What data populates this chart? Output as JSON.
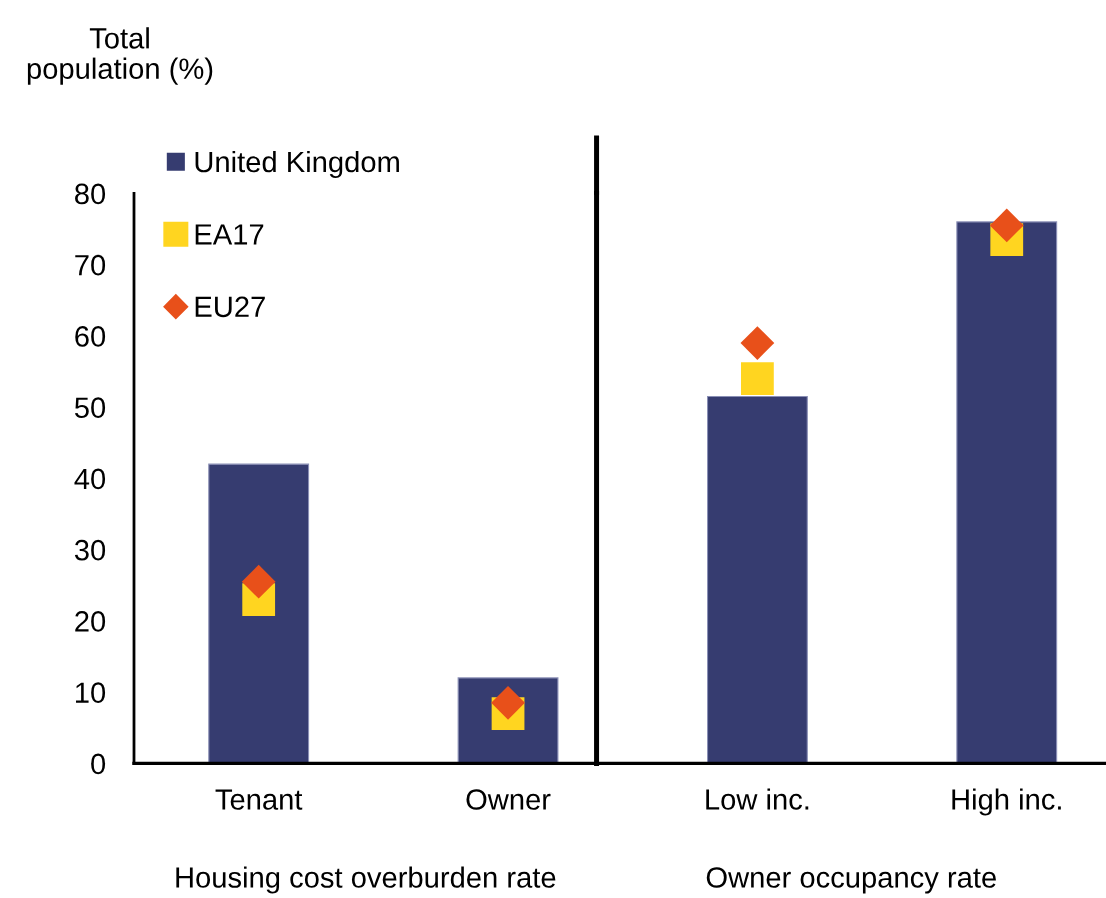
{
  "chart_data": [
    {
      "type": "bar",
      "ylabel": "Total\npopulation (%)",
      "xlabel": "Housing cost overburden rate",
      "categories": [
        "Tenant",
        "Owner"
      ],
      "series": [
        {
          "name": "United Kingdom",
          "color": "#363c70",
          "values": [
            42,
            12
          ]
        },
        {
          "name": "EA17",
          "type": "scatter",
          "marker": "square",
          "color": "#ffd520",
          "values": [
            23,
            7
          ]
        },
        {
          "name": "EU27",
          "type": "scatter",
          "marker": "diamond",
          "color": "#e8501a",
          "values": [
            25.5,
            8.5
          ]
        }
      ],
      "ylim": [
        0,
        80
      ],
      "yticks": [
        0,
        10,
        20,
        30,
        40,
        50,
        60,
        70,
        80
      ],
      "legend": "top left"
    },
    {
      "type": "bar",
      "xlabel": "Owner occupancy rate",
      "categories": [
        "Low inc.",
        "High inc."
      ],
      "series": [
        {
          "color": "#363c70",
          "values": [
            51.5,
            76
          ]
        },
        {
          "type": "scatter",
          "marker": "square",
          "color": "#ffd520",
          "values": [
            54,
            73.5
          ]
        },
        {
          "type": "scatter",
          "marker": "diamond",
          "color": "#e8501a",
          "values": [
            59,
            75.5
          ]
        }
      ],
      "ylim": [
        0,
        80
      ],
      "tick_labels": "x"
    }
  ]
}
